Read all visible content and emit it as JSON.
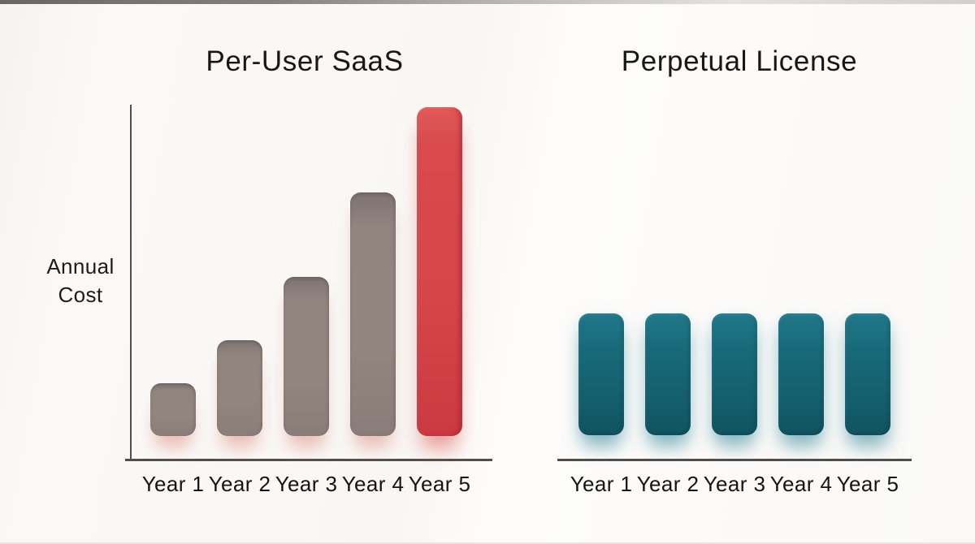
{
  "page": {
    "background_color": "#FAF8F5",
    "top_edge_color": "#454341",
    "axis_color": "#504E4C",
    "title_color": "#171717",
    "saas_bar_color": "#8F827E",
    "saas_highlight_color": "#D6484B",
    "perpetual_bar_color": "#176270"
  },
  "chart_data": [
    {
      "type": "bar",
      "title": "Per-User SaaS",
      "ylabel": "Annual Cost",
      "ylabel_lines": [
        "Annual",
        "Cost"
      ],
      "categories": [
        "Year 1",
        "Year 2",
        "Year 3",
        "Year 4",
        "Year 5"
      ],
      "values": [
        1.0,
        1.8,
        3.0,
        4.6,
        6.2
      ],
      "units": "relative annual cost (no numeric scale shown)",
      "bar_colors": [
        "#8F827E",
        "#8F827E",
        "#8F827E",
        "#8F827E",
        "#D6484B"
      ],
      "highlight_index": 4,
      "grid": false,
      "legend": false,
      "axes": "left y-axis and bottom x-axis, no tick values"
    },
    {
      "type": "bar",
      "title": "Perpetual License",
      "ylabel": "",
      "categories": [
        "Year 1",
        "Year 2",
        "Year 3",
        "Year 4",
        "Year 5"
      ],
      "values": [
        2.3,
        2.3,
        2.3,
        2.3,
        2.3
      ],
      "units": "relative annual cost (no numeric scale shown)",
      "bar_colors": [
        "#176270",
        "#176270",
        "#176270",
        "#176270",
        "#176270"
      ],
      "highlight_index": null,
      "grid": false,
      "legend": false,
      "axes": "bottom x-axis only, no tick values"
    }
  ]
}
